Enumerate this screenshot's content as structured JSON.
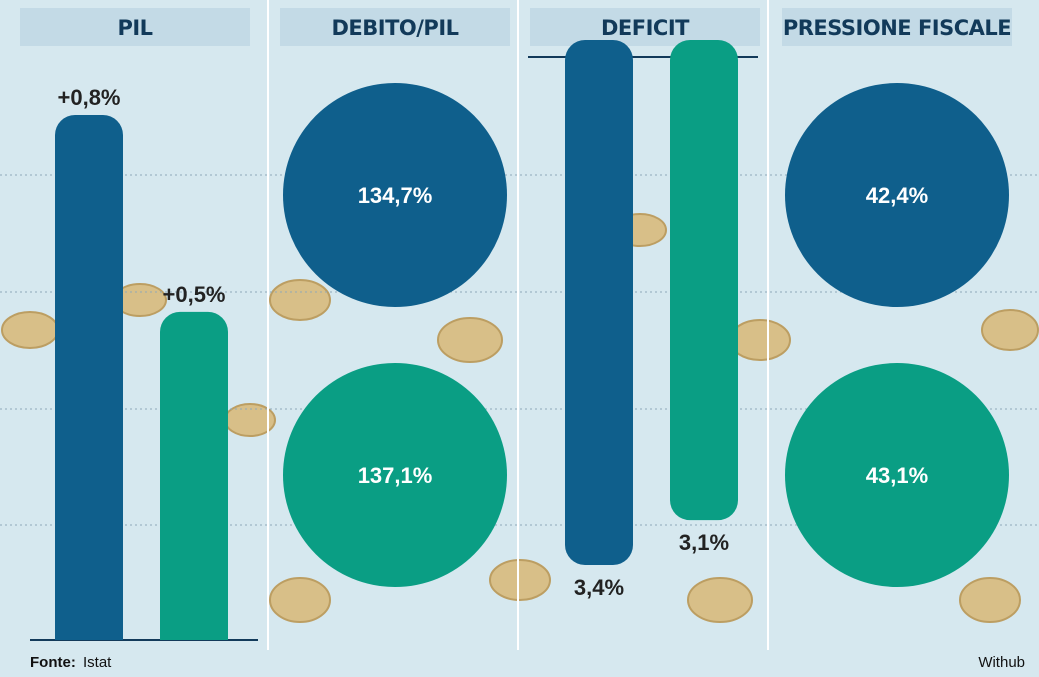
{
  "chart_data": [
    {
      "type": "bar",
      "title": "PIL",
      "values": [
        0.8,
        0.5
      ],
      "value_labels": [
        "+0,8%",
        "+0,5%"
      ],
      "colors": [
        "#0f5f8c",
        "#0a9e84"
      ]
    },
    {
      "type": "circle",
      "title": "DEBITO/PIL",
      "values": [
        134.7,
        137.1
      ],
      "value_labels": [
        "134,7%",
        "137,1%"
      ],
      "colors": [
        "#0f5f8c",
        "#0a9e84"
      ]
    },
    {
      "type": "bar",
      "title": "DEFICIT",
      "values": [
        3.4,
        3.1
      ],
      "value_labels": [
        "3,4%",
        "3,1%"
      ],
      "colors": [
        "#0f5f8c",
        "#0a9e84"
      ],
      "inverted": true
    },
    {
      "type": "circle",
      "title": "PRESSIONE FISCALE",
      "values": [
        42.4,
        43.1
      ],
      "value_labels": [
        "42,4%",
        "43,1%"
      ],
      "colors": [
        "#0f5f8c",
        "#0a9e84"
      ]
    }
  ],
  "footer": {
    "source_label": "Fonte:",
    "source": "Istat",
    "credit": "Withub"
  }
}
